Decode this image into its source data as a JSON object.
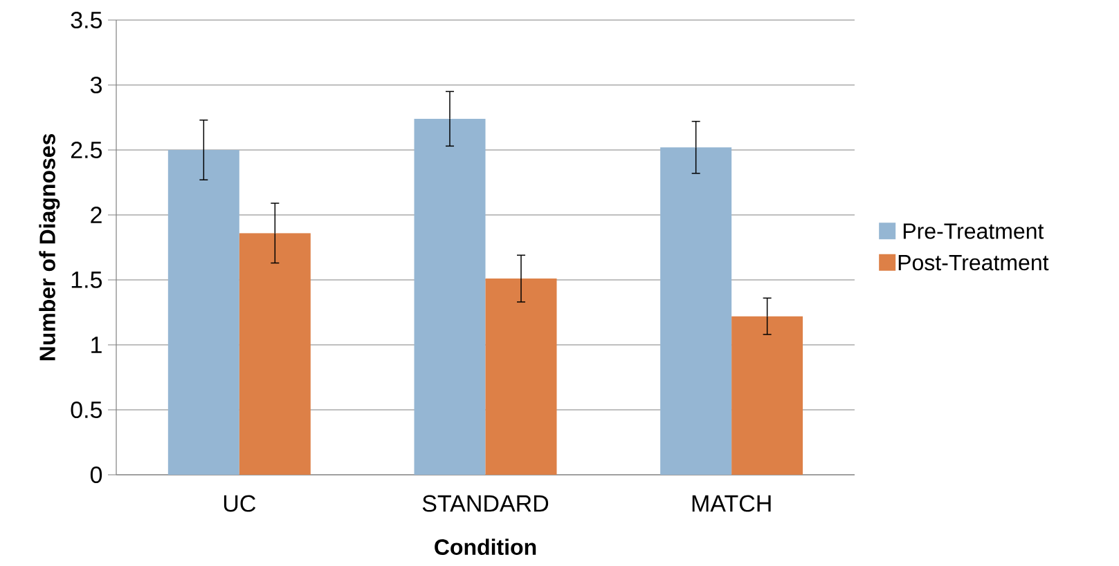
{
  "chart_data": {
    "type": "bar",
    "xlabel": "Condition",
    "ylabel": "Number of Diagnoses",
    "categories": [
      "UC",
      "STANDARD",
      "MATCH"
    ],
    "series": [
      {
        "name": "Pre-Treatment",
        "color": "#95b6d3",
        "values": [
          2.5,
          2.74,
          2.52
        ],
        "errors": [
          0.23,
          0.21,
          0.2
        ]
      },
      {
        "name": "Post-Treatment",
        "color": "#dd8047",
        "values": [
          1.86,
          1.51,
          1.22
        ],
        "errors": [
          0.23,
          0.18,
          0.14
        ]
      }
    ],
    "ylim": [
      0,
      3.5
    ],
    "yticks": [
      0,
      0.5,
      1,
      1.5,
      2,
      2.5,
      3,
      3.5
    ],
    "grid": "y",
    "legend": "right"
  }
}
